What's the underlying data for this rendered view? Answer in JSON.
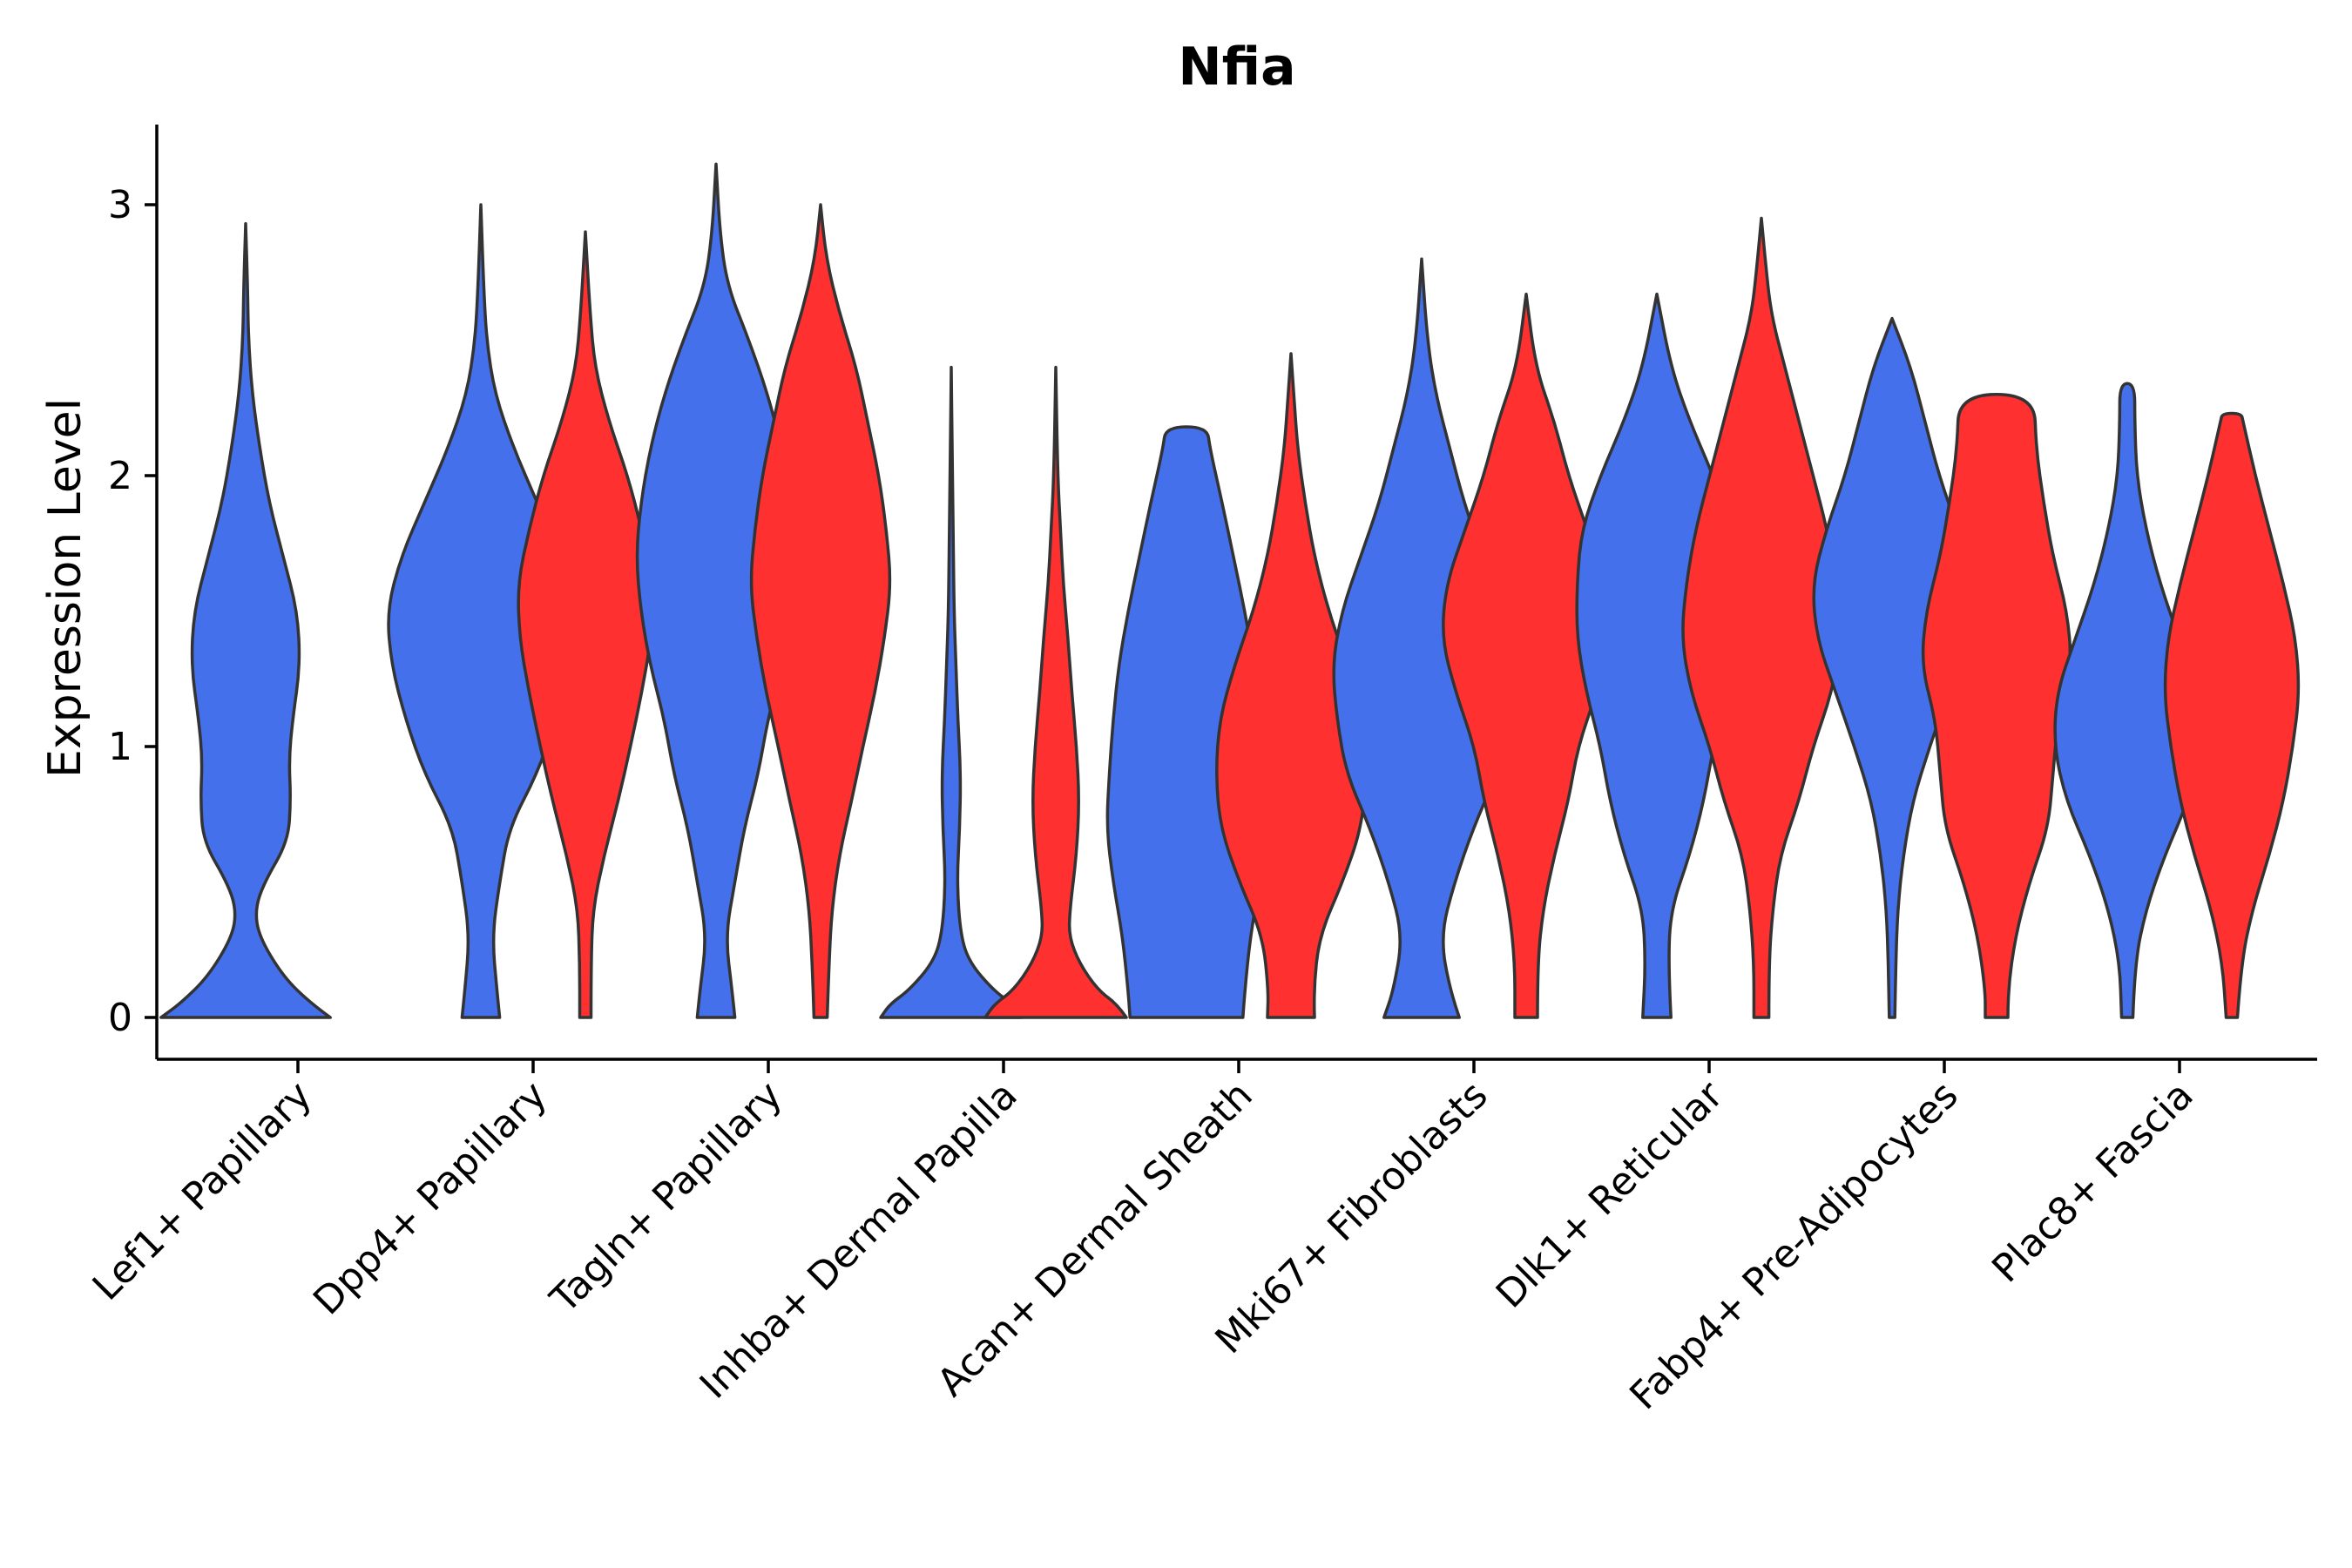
{
  "chart_data": {
    "type": "violin",
    "title": "Nfia",
    "ylabel": "Expression Level",
    "xlabel": "",
    "ylim": [
      -0.15,
      3.3
    ],
    "yticks": [
      0,
      1,
      2,
      3
    ],
    "colors": {
      "group_a": "#4470EB",
      "group_b": "#FF3030",
      "outline": "#333333"
    },
    "categories": [
      "Lef1+ Papillary",
      "Dpp4+ Papillary",
      "Tagln+ Papillary",
      "Inhba+ Dermal Papilla",
      "Acan+ Dermal Sheath",
      "Mki67+ Fibroblasts",
      "Dlk1+ Reticular",
      "Fabp4+ Pre-Adipocytes",
      "Plac8+ Fascia"
    ],
    "violins": [
      {
        "category": "Lef1+ Papillary",
        "group": "a",
        "ymax": 2.93,
        "profile": [
          [
            0,
            0.9
          ],
          [
            0.05,
            0.7
          ],
          [
            0.15,
            0.4
          ],
          [
            0.3,
            0.14
          ],
          [
            0.4,
            0.1
          ],
          [
            0.5,
            0.2
          ],
          [
            0.65,
            0.45
          ],
          [
            0.8,
            0.48
          ],
          [
            0.95,
            0.46
          ],
          [
            1.1,
            0.5
          ],
          [
            1.3,
            0.58
          ],
          [
            1.5,
            0.55
          ],
          [
            1.7,
            0.4
          ],
          [
            1.9,
            0.25
          ],
          [
            2.1,
            0.15
          ],
          [
            2.3,
            0.07
          ],
          [
            2.5,
            0.03
          ],
          [
            2.7,
            0.02
          ],
          [
            2.93,
            0
          ]
        ]
      },
      {
        "category": "Dpp4+ Papillary",
        "group": "a",
        "ymax": 3.0,
        "profile": [
          [
            0,
            0.2
          ],
          [
            0.1,
            0.17
          ],
          [
            0.3,
            0.12
          ],
          [
            0.5,
            0.2
          ],
          [
            0.7,
            0.3
          ],
          [
            0.9,
            0.6
          ],
          [
            1.1,
            0.8
          ],
          [
            1.3,
            0.95
          ],
          [
            1.5,
            1.0
          ],
          [
            1.7,
            0.85
          ],
          [
            1.9,
            0.6
          ],
          [
            2.1,
            0.35
          ],
          [
            2.3,
            0.15
          ],
          [
            2.5,
            0.06
          ],
          [
            2.7,
            0.03
          ],
          [
            3.0,
            0
          ]
        ]
      },
      {
        "category": "Dpp4+ Papillary",
        "group": "b",
        "ymax": 2.9,
        "profile": [
          [
            0,
            0.06
          ],
          [
            0.2,
            0.06
          ],
          [
            0.4,
            0.08
          ],
          [
            0.6,
            0.2
          ],
          [
            0.8,
            0.35
          ],
          [
            1.0,
            0.48
          ],
          [
            1.2,
            0.6
          ],
          [
            1.4,
            0.7
          ],
          [
            1.6,
            0.72
          ],
          [
            1.8,
            0.6
          ],
          [
            2.0,
            0.45
          ],
          [
            2.2,
            0.25
          ],
          [
            2.4,
            0.1
          ],
          [
            2.6,
            0.05
          ],
          [
            2.9,
            0
          ]
        ]
      },
      {
        "category": "Tagln+ Papillary",
        "group": "a",
        "ymax": 3.15,
        "profile": [
          [
            0,
            0.2
          ],
          [
            0.1,
            0.17
          ],
          [
            0.3,
            0.1
          ],
          [
            0.5,
            0.2
          ],
          [
            0.7,
            0.3
          ],
          [
            0.9,
            0.45
          ],
          [
            1.1,
            0.55
          ],
          [
            1.3,
            0.7
          ],
          [
            1.5,
            0.8
          ],
          [
            1.7,
            0.85
          ],
          [
            1.9,
            0.8
          ],
          [
            2.1,
            0.7
          ],
          [
            2.3,
            0.55
          ],
          [
            2.5,
            0.35
          ],
          [
            2.7,
            0.12
          ],
          [
            2.9,
            0.04
          ],
          [
            3.15,
            0
          ]
        ]
      },
      {
        "category": "Tagln+ Papillary",
        "group": "b",
        "ymax": 3.0,
        "profile": [
          [
            0,
            0.07
          ],
          [
            0.2,
            0.09
          ],
          [
            0.4,
            0.12
          ],
          [
            0.6,
            0.2
          ],
          [
            0.8,
            0.33
          ],
          [
            1.0,
            0.45
          ],
          [
            1.2,
            0.58
          ],
          [
            1.4,
            0.68
          ],
          [
            1.6,
            0.75
          ],
          [
            1.8,
            0.7
          ],
          [
            2.0,
            0.62
          ],
          [
            2.2,
            0.5
          ],
          [
            2.4,
            0.38
          ],
          [
            2.6,
            0.2
          ],
          [
            2.8,
            0.06
          ],
          [
            3.0,
            0
          ]
        ]
      },
      {
        "category": "Inhba+ Dermal Papilla",
        "group": "a",
        "ymax": 2.4,
        "profile": [
          [
            0,
            0.75
          ],
          [
            0.05,
            0.65
          ],
          [
            0.1,
            0.45
          ],
          [
            0.2,
            0.2
          ],
          [
            0.3,
            0.1
          ],
          [
            0.5,
            0.06
          ],
          [
            0.7,
            0.09
          ],
          [
            0.9,
            0.1
          ],
          [
            1.1,
            0.07
          ],
          [
            1.3,
            0.05
          ],
          [
            1.5,
            0.03
          ],
          [
            1.8,
            0.02
          ],
          [
            2.1,
            0.01
          ],
          [
            2.4,
            0
          ]
        ]
      },
      {
        "category": "Inhba+ Dermal Papilla",
        "group": "b",
        "ymax": 2.4,
        "profile": [
          [
            0,
            0.75
          ],
          [
            0.05,
            0.65
          ],
          [
            0.1,
            0.45
          ],
          [
            0.2,
            0.25
          ],
          [
            0.3,
            0.14
          ],
          [
            0.4,
            0.15
          ],
          [
            0.6,
            0.22
          ],
          [
            0.8,
            0.25
          ],
          [
            1.0,
            0.22
          ],
          [
            1.2,
            0.17
          ],
          [
            1.4,
            0.13
          ],
          [
            1.6,
            0.08
          ],
          [
            1.8,
            0.05
          ],
          [
            2.0,
            0.02
          ],
          [
            2.4,
            0
          ]
        ]
      },
      {
        "category": "Acan+ Dermal Sheath",
        "group": "a",
        "ymax": 2.18,
        "profile": [
          [
            0,
            0.6
          ],
          [
            0.1,
            0.62
          ],
          [
            0.3,
            0.68
          ],
          [
            0.5,
            0.78
          ],
          [
            0.7,
            0.85
          ],
          [
            0.9,
            0.82
          ],
          [
            1.1,
            0.78
          ],
          [
            1.3,
            0.72
          ],
          [
            1.5,
            0.62
          ],
          [
            1.7,
            0.5
          ],
          [
            1.9,
            0.38
          ],
          [
            2.1,
            0.25
          ],
          [
            2.18,
            0.22
          ]
        ]
      },
      {
        "category": "Acan+ Dermal Sheath",
        "group": "b",
        "ymax": 2.45,
        "profile": [
          [
            0,
            0.25
          ],
          [
            0.1,
            0.24
          ],
          [
            0.3,
            0.3
          ],
          [
            0.5,
            0.55
          ],
          [
            0.7,
            0.75
          ],
          [
            0.9,
            0.8
          ],
          [
            1.1,
            0.76
          ],
          [
            1.3,
            0.6
          ],
          [
            1.5,
            0.4
          ],
          [
            1.7,
            0.25
          ],
          [
            1.9,
            0.15
          ],
          [
            2.1,
            0.07
          ],
          [
            2.3,
            0.03
          ],
          [
            2.45,
            0
          ]
        ]
      },
      {
        "category": "Mki67+ Fibroblasts",
        "group": "a",
        "ymax": 2.8,
        "profile": [
          [
            0,
            0.4
          ],
          [
            0.1,
            0.3
          ],
          [
            0.3,
            0.2
          ],
          [
            0.5,
            0.35
          ],
          [
            0.7,
            0.55
          ],
          [
            0.9,
            0.8
          ],
          [
            1.1,
            0.9
          ],
          [
            1.3,
            0.95
          ],
          [
            1.5,
            0.85
          ],
          [
            1.7,
            0.65
          ],
          [
            1.9,
            0.45
          ],
          [
            2.1,
            0.3
          ],
          [
            2.3,
            0.15
          ],
          [
            2.5,
            0.06
          ],
          [
            2.8,
            0
          ]
        ]
      },
      {
        "category": "Mki67+ Fibroblasts",
        "group": "b",
        "ymax": 2.67,
        "profile": [
          [
            0,
            0.12
          ],
          [
            0.2,
            0.12
          ],
          [
            0.4,
            0.18
          ],
          [
            0.6,
            0.3
          ],
          [
            0.8,
            0.45
          ],
          [
            1.0,
            0.55
          ],
          [
            1.2,
            0.75
          ],
          [
            1.4,
            0.9
          ],
          [
            1.6,
            0.85
          ],
          [
            1.8,
            0.65
          ],
          [
            2.0,
            0.45
          ],
          [
            2.2,
            0.3
          ],
          [
            2.4,
            0.1
          ],
          [
            2.67,
            0
          ]
        ]
      },
      {
        "category": "Dlk1+ Reticular",
        "group": "a",
        "ymax": 2.67,
        "profile": [
          [
            0,
            0.15
          ],
          [
            0.2,
            0.12
          ],
          [
            0.4,
            0.15
          ],
          [
            0.6,
            0.35
          ],
          [
            0.8,
            0.5
          ],
          [
            1.0,
            0.6
          ],
          [
            1.2,
            0.75
          ],
          [
            1.4,
            0.85
          ],
          [
            1.6,
            0.85
          ],
          [
            1.8,
            0.8
          ],
          [
            2.0,
            0.6
          ],
          [
            2.2,
            0.35
          ],
          [
            2.4,
            0.15
          ],
          [
            2.67,
            0
          ]
        ]
      },
      {
        "category": "Dlk1+ Reticular",
        "group": "b",
        "ymax": 2.95,
        "profile": [
          [
            0,
            0.08
          ],
          [
            0.2,
            0.08
          ],
          [
            0.4,
            0.12
          ],
          [
            0.6,
            0.2
          ],
          [
            0.8,
            0.4
          ],
          [
            1.0,
            0.55
          ],
          [
            1.2,
            0.75
          ],
          [
            1.4,
            0.85
          ],
          [
            1.6,
            0.8
          ],
          [
            1.8,
            0.7
          ],
          [
            2.0,
            0.55
          ],
          [
            2.2,
            0.4
          ],
          [
            2.4,
            0.25
          ],
          [
            2.6,
            0.1
          ],
          [
            2.8,
            0.04
          ],
          [
            2.95,
            0
          ]
        ]
      },
      {
        "category": "Fabp4+ Pre-Adipocytes",
        "group": "a",
        "ymax": 2.58,
        "profile": [
          [
            0,
            0.03
          ],
          [
            0.2,
            0.04
          ],
          [
            0.4,
            0.06
          ],
          [
            0.6,
            0.12
          ],
          [
            0.8,
            0.22
          ],
          [
            1.0,
            0.4
          ],
          [
            1.2,
            0.6
          ],
          [
            1.4,
            0.8
          ],
          [
            1.6,
            0.85
          ],
          [
            1.8,
            0.7
          ],
          [
            2.0,
            0.5
          ],
          [
            2.2,
            0.35
          ],
          [
            2.4,
            0.2
          ],
          [
            2.58,
            0
          ]
        ]
      },
      {
        "category": "Fabp4+ Pre-Adipocytes",
        "group": "b",
        "ymax": 2.3,
        "profile": [
          [
            0,
            0.12
          ],
          [
            0.1,
            0.12
          ],
          [
            0.3,
            0.2
          ],
          [
            0.5,
            0.35
          ],
          [
            0.7,
            0.55
          ],
          [
            0.9,
            0.6
          ],
          [
            1.1,
            0.65
          ],
          [
            1.3,
            0.8
          ],
          [
            1.5,
            0.75
          ],
          [
            1.7,
            0.6
          ],
          [
            1.9,
            0.5
          ],
          [
            2.1,
            0.42
          ],
          [
            2.3,
            0.4
          ]
        ]
      },
      {
        "category": "Plac8+ Fascia",
        "group": "a",
        "ymax": 2.34,
        "profile": [
          [
            0,
            0.06
          ],
          [
            0.2,
            0.08
          ],
          [
            0.4,
            0.2
          ],
          [
            0.6,
            0.4
          ],
          [
            0.8,
            0.65
          ],
          [
            1.0,
            0.78
          ],
          [
            1.2,
            0.75
          ],
          [
            1.4,
            0.55
          ],
          [
            1.6,
            0.35
          ],
          [
            1.8,
            0.2
          ],
          [
            2.0,
            0.1
          ],
          [
            2.2,
            0.08
          ],
          [
            2.34,
            0.08
          ]
        ]
      },
      {
        "category": "Plac8+ Fascia",
        "group": "b",
        "ymax": 2.23,
        "profile": [
          [
            0,
            0.06
          ],
          [
            0.2,
            0.1
          ],
          [
            0.4,
            0.22
          ],
          [
            0.6,
            0.4
          ],
          [
            0.8,
            0.55
          ],
          [
            1.0,
            0.65
          ],
          [
            1.2,
            0.72
          ],
          [
            1.4,
            0.68
          ],
          [
            1.6,
            0.55
          ],
          [
            1.8,
            0.4
          ],
          [
            2.0,
            0.25
          ],
          [
            2.2,
            0.12
          ],
          [
            2.23,
            0.1
          ]
        ]
      }
    ]
  }
}
